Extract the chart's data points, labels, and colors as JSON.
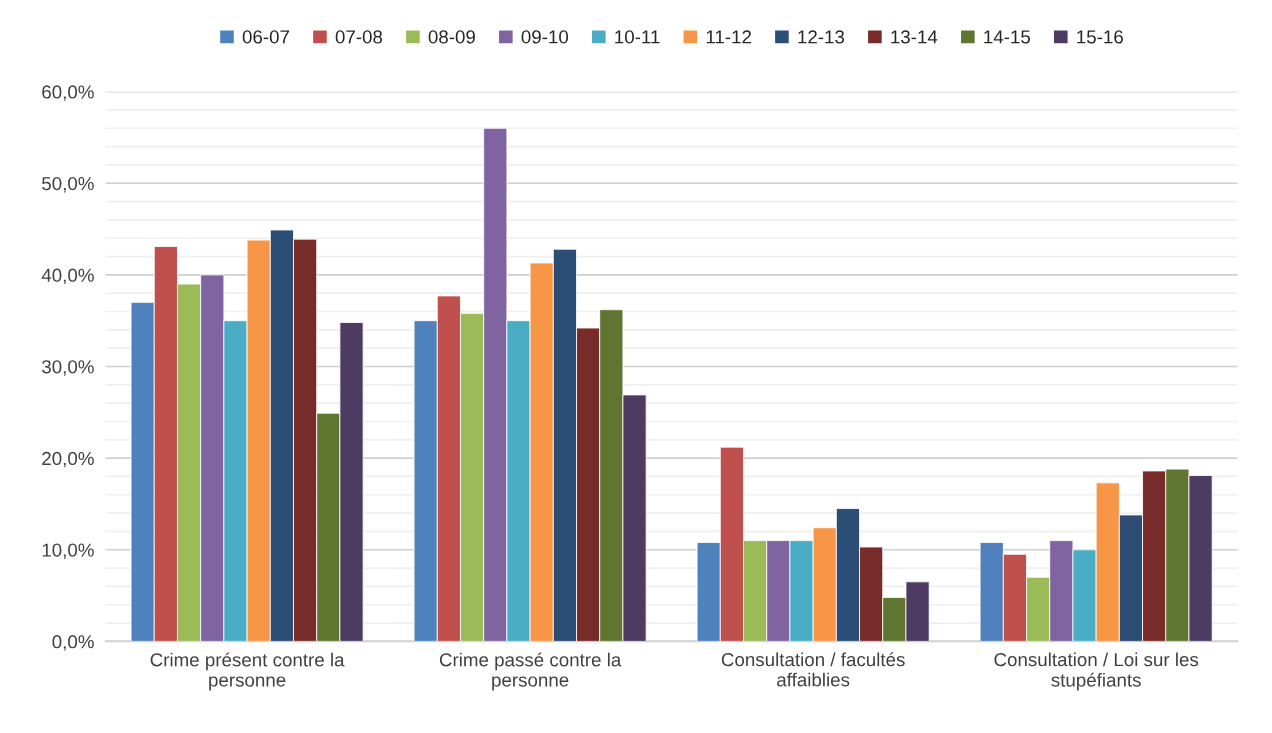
{
  "chart_data": {
    "type": "bar",
    "categories": [
      "Crime présent contre la\npersonne",
      "Crime passé contre la\npersonne",
      "Consultation / facultés\naffaiblies",
      "Consultation / Loi sur les\nstupéfiants"
    ],
    "series": [
      {
        "name": "06-07",
        "color": "#4f81bd",
        "values": [
          37.0,
          35.0,
          10.8,
          10.8
        ]
      },
      {
        "name": "07-08",
        "color": "#c0504d",
        "values": [
          43.1,
          37.7,
          21.2,
          9.5
        ]
      },
      {
        "name": "08-09",
        "color": "#9bbb59",
        "values": [
          39.0,
          35.8,
          11.0,
          7.0
        ]
      },
      {
        "name": "09-10",
        "color": "#8064a2",
        "values": [
          40.0,
          56.0,
          11.0,
          11.0
        ]
      },
      {
        "name": "10-11",
        "color": "#4bacc6",
        "values": [
          35.0,
          35.0,
          11.0,
          10.0
        ]
      },
      {
        "name": "11-12",
        "color": "#f79646",
        "values": [
          43.8,
          41.3,
          12.4,
          17.3
        ]
      },
      {
        "name": "12-13",
        "color": "#2c4d75",
        "values": [
          44.9,
          42.8,
          14.5,
          13.8
        ]
      },
      {
        "name": "13-14",
        "color": "#772c2a",
        "values": [
          43.9,
          34.2,
          10.3,
          18.6
        ]
      },
      {
        "name": "14-15",
        "color": "#5f7530",
        "values": [
          24.9,
          36.2,
          4.8,
          18.8
        ]
      },
      {
        "name": "15-16",
        "color": "#4d3b62",
        "values": [
          34.8,
          26.9,
          6.5,
          18.1
        ]
      }
    ],
    "ylim": [
      0,
      60
    ],
    "yticks": [
      {
        "value": 0,
        "label": "0,0%"
      },
      {
        "value": 2,
        "label": null
      },
      {
        "value": 4,
        "label": null
      },
      {
        "value": 6,
        "label": null
      },
      {
        "value": 8,
        "label": null
      },
      {
        "value": 10,
        "label": "10,0%"
      },
      {
        "value": 12,
        "label": null
      },
      {
        "value": 14,
        "label": null
      },
      {
        "value": 16,
        "label": null
      },
      {
        "value": 18,
        "label": null
      },
      {
        "value": 20,
        "label": "20,0%"
      },
      {
        "value": 22,
        "label": null
      },
      {
        "value": 24,
        "label": null
      },
      {
        "value": 26,
        "label": null
      },
      {
        "value": 28,
        "label": null
      },
      {
        "value": 30,
        "label": "30,0%"
      },
      {
        "value": 32,
        "label": null
      },
      {
        "value": 34,
        "label": null
      },
      {
        "value": 36,
        "label": null
      },
      {
        "value": 38,
        "label": null
      },
      {
        "value": 40,
        "label": "40,0%"
      },
      {
        "value": 42,
        "label": null
      },
      {
        "value": 44,
        "label": null
      },
      {
        "value": 46,
        "label": null
      },
      {
        "value": 48,
        "label": null
      },
      {
        "value": 50,
        "label": "50,0%"
      },
      {
        "value": 52,
        "label": null
      },
      {
        "value": 54,
        "label": null
      },
      {
        "value": 56,
        "label": null
      },
      {
        "value": 58,
        "label": null
      },
      {
        "value": 60,
        "label": "60,0%"
      }
    ],
    "grid": "y",
    "legend": "top"
  }
}
